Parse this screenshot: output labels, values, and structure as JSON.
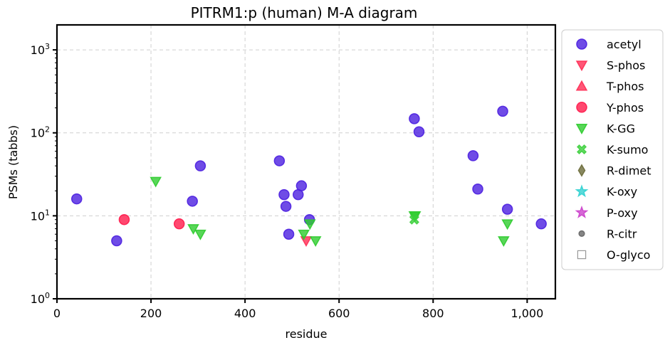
{
  "chart_data": {
    "type": "scatter",
    "title": "PITRM1:p (human) M-A diagram",
    "xlabel": "residue",
    "ylabel": "PSMs (tabbs)",
    "xlim": [
      0,
      1060
    ],
    "ylim": [
      1,
      2000
    ],
    "yscale": "log",
    "grid": true,
    "legend_position": "right-outside",
    "x_ticks": [
      {
        "value": 0,
        "label": "0"
      },
      {
        "value": 200,
        "label": "200"
      },
      {
        "value": 400,
        "label": "400"
      },
      {
        "value": 600,
        "label": "600"
      },
      {
        "value": 800,
        "label": "800"
      },
      {
        "value": 1000,
        "label": "1,000"
      }
    ],
    "y_ticks": [
      {
        "value": 1,
        "base": "10",
        "exp": "0"
      },
      {
        "value": 10,
        "base": "10",
        "exp": "1"
      },
      {
        "value": 100,
        "base": "10",
        "exp": "2"
      },
      {
        "value": 1000,
        "base": "10",
        "exp": "3"
      }
    ],
    "series": [
      {
        "name": "acetyl",
        "marker": "circle",
        "color": "#4b1fe0",
        "points": [
          [
            42,
            16
          ],
          [
            127,
            5
          ],
          [
            288,
            15
          ],
          [
            305,
            40
          ],
          [
            473,
            46
          ],
          [
            483,
            18
          ],
          [
            487,
            13
          ],
          [
            493,
            6
          ],
          [
            513,
            18
          ],
          [
            520,
            23
          ],
          [
            537,
            9
          ],
          [
            760,
            148
          ],
          [
            770,
            103
          ],
          [
            885,
            53
          ],
          [
            895,
            21
          ],
          [
            948,
            182
          ],
          [
            958,
            12
          ],
          [
            1030,
            8
          ]
        ]
      },
      {
        "name": "S-phos",
        "marker": "triangle-down",
        "color": "#ff2d55",
        "points": [
          [
            530,
            5
          ]
        ]
      },
      {
        "name": "T-phos",
        "marker": "triangle-up",
        "color": "#ff2d55",
        "points": []
      },
      {
        "name": "Y-phos",
        "marker": "circle",
        "color": "#ff1a4b",
        "points": [
          [
            143,
            9
          ],
          [
            260,
            8
          ]
        ]
      },
      {
        "name": "K-GG",
        "marker": "triangle-down",
        "color": "#2ecc2e",
        "points": [
          [
            210,
            26
          ],
          [
            290,
            7
          ],
          [
            305,
            6
          ],
          [
            525,
            6
          ],
          [
            538,
            8
          ],
          [
            550,
            5
          ],
          [
            760,
            10
          ],
          [
            762,
            10
          ],
          [
            950,
            5
          ],
          [
            958,
            8
          ]
        ]
      },
      {
        "name": "K-sumo",
        "marker": "x",
        "color": "#3ccf3c",
        "points": [
          [
            760,
            9
          ]
        ]
      },
      {
        "name": "R-dimet",
        "marker": "diamond",
        "color": "#6b6b3a",
        "points": []
      },
      {
        "name": "K-oxy",
        "marker": "star",
        "color": "#33d1d1",
        "points": []
      },
      {
        "name": "P-oxy",
        "marker": "star",
        "color": "#cc44cc",
        "points": []
      },
      {
        "name": "R-citr",
        "marker": "dot",
        "color": "#666666",
        "points": []
      },
      {
        "name": "O-glyco",
        "marker": "square-open",
        "color": "#999999",
        "points": []
      }
    ]
  }
}
